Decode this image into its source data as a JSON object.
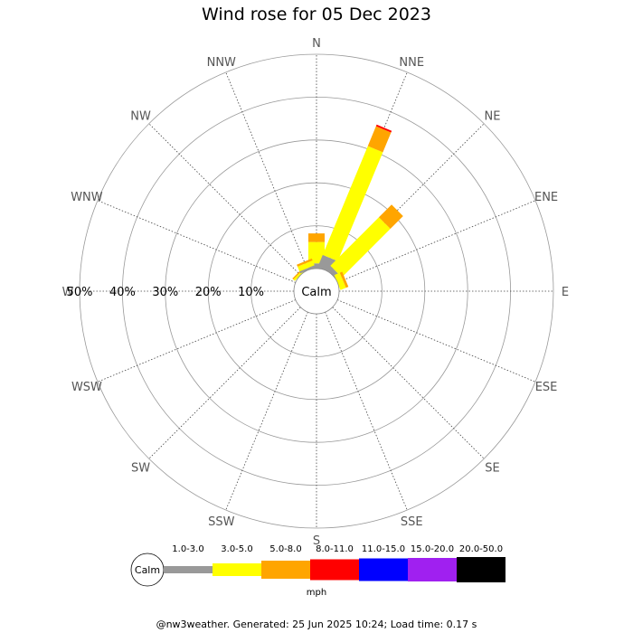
{
  "chart_data": {
    "type": "wind-rose",
    "title": "Wind rose for 05 Dec 2023",
    "center_label": "Calm",
    "directions": [
      "N",
      "NNE",
      "NE",
      "ENE",
      "E",
      "ESE",
      "SE",
      "SSE",
      "S",
      "SSW",
      "SW",
      "WSW",
      "W",
      "WNW",
      "NW",
      "NNW"
    ],
    "radial_ticks": [
      "10%",
      "20%",
      "30%",
      "40%",
      "50%"
    ],
    "radial_range": [
      0,
      50
    ],
    "speed_unit": "mph",
    "bins": [
      {
        "label": "1.0-3.0",
        "color": "#999999"
      },
      {
        "label": "3.0-5.0",
        "color": "#ffff00"
      },
      {
        "label": "5.0-8.0",
        "color": "#ffa500"
      },
      {
        "label": "8.0-11.0",
        "color": "#ff0000"
      },
      {
        "label": "11.0-15.0",
        "color": "#0000ff"
      },
      {
        "label": "15.0-20.0",
        "color": "#a020f0"
      },
      {
        "label": "20.0-50.0",
        "color": "#000000"
      }
    ],
    "series": [
      {
        "direction": "N",
        "values": [
          1.2,
          5.0,
          2.0,
          0,
          0,
          0,
          0
        ]
      },
      {
        "direction": "NNE",
        "values": [
          3.1,
          27.5,
          5.0,
          0.4,
          0,
          0,
          0
        ]
      },
      {
        "direction": "NE",
        "values": [
          1.2,
          16.0,
          4.2,
          0,
          0,
          0,
          0
        ]
      },
      {
        "direction": "ENE",
        "values": [
          0,
          1.4,
          0.6,
          0,
          0,
          0,
          0
        ]
      },
      {
        "direction": "E",
        "values": [
          0,
          0,
          0,
          0,
          0,
          0,
          0
        ]
      },
      {
        "direction": "ESE",
        "values": [
          0,
          0,
          0,
          0,
          0,
          0,
          0
        ]
      },
      {
        "direction": "SE",
        "values": [
          0,
          0,
          0,
          0,
          0,
          0,
          0
        ]
      },
      {
        "direction": "SSE",
        "values": [
          0,
          0,
          0,
          0,
          0,
          0,
          0
        ]
      },
      {
        "direction": "S",
        "values": [
          0,
          0,
          0,
          0,
          0,
          0,
          0
        ]
      },
      {
        "direction": "SSW",
        "values": [
          0,
          0,
          0,
          0,
          0,
          0,
          0
        ]
      },
      {
        "direction": "SW",
        "values": [
          0,
          0,
          0,
          0,
          0,
          0,
          0
        ]
      },
      {
        "direction": "WSW",
        "values": [
          0,
          0,
          0,
          0,
          0,
          0,
          0
        ]
      },
      {
        "direction": "W",
        "values": [
          0,
          0,
          0,
          0,
          0,
          0,
          0
        ]
      },
      {
        "direction": "WNW",
        "values": [
          0,
          0,
          0,
          0,
          0,
          0,
          0
        ]
      },
      {
        "direction": "NW",
        "values": [
          0,
          0.5,
          0.3,
          0,
          0,
          0,
          0
        ]
      },
      {
        "direction": "NNW",
        "values": [
          0.5,
          1.2,
          0.5,
          0,
          0,
          0,
          0
        ]
      }
    ]
  },
  "footer": "@nw3weather. Generated: 25 Jun 2025 10:24; Load time: 0.17 s"
}
